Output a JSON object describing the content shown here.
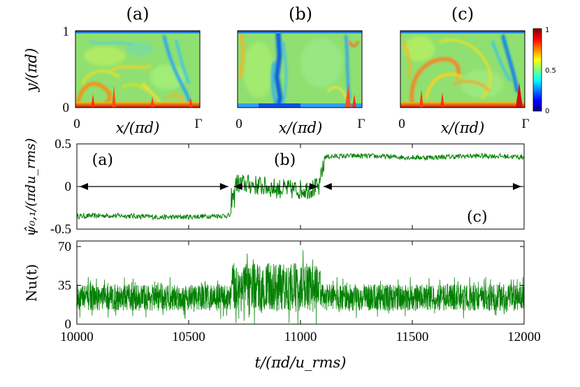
{
  "figure": {
    "snapshots": [
      {
        "label": "(a)",
        "x_start": "0",
        "x_end": "Γ",
        "xlabel": "x/(πd)"
      },
      {
        "label": "(b)",
        "x_start": "0",
        "x_end": "Γ",
        "xlabel": "x/(πd)"
      },
      {
        "label": "(c)",
        "x_start": "0",
        "x_end": "Γ",
        "xlabel": "x/(πd)"
      }
    ],
    "snapshot_ylabel": "y/(πd)",
    "snapshot_yticks": [
      "1",
      "0"
    ],
    "colorbar": {
      "ticks": [
        "1",
        "0.5",
        "0"
      ],
      "range": [
        0,
        1
      ],
      "colormap": "jet"
    },
    "interval_labels": [
      "(a)",
      "(b)",
      "(c)"
    ]
  },
  "chart_data": [
    {
      "type": "line",
      "title": "",
      "xlabel": "",
      "ylabel": "ψ̂₀,₁/(πdu_rms)",
      "xlim": [
        10000,
        12000
      ],
      "ylim": [
        -0.5,
        0.5
      ],
      "yticks": [
        "0.5",
        "0",
        "-0.5"
      ],
      "color": "#008000",
      "series": [
        {
          "name": "psi_01",
          "segments": [
            {
              "t_start": 10000,
              "t_end": 10690,
              "mean": -0.35,
              "amplitude": 0.03
            },
            {
              "t_start": 10690,
              "t_end": 10705,
              "mean": -0.17,
              "amplitude": 0.12
            },
            {
              "t_start": 10705,
              "t_end": 11090,
              "mean": 0.0,
              "amplitude": 0.12
            },
            {
              "t_start": 11090,
              "t_end": 11105,
              "mean": 0.2,
              "amplitude": 0.12
            },
            {
              "t_start": 11105,
              "t_end": 12000,
              "mean": 0.35,
              "amplitude": 0.03
            }
          ]
        }
      ],
      "annotations": [
        {
          "text": "(a)",
          "t_start": 10000,
          "t_end": 10690
        },
        {
          "text": "(b)",
          "t_start": 10690,
          "t_end": 11090
        },
        {
          "text": "(c)",
          "t_start": 11090,
          "t_end": 12000
        }
      ]
    },
    {
      "type": "line",
      "title": "",
      "xlabel": "t/(πd/u_rms)",
      "ylabel": "Nu(t)",
      "xlim": [
        10000,
        12000
      ],
      "ylim": [
        0,
        75
      ],
      "yticks": [
        "70",
        "35",
        "0"
      ],
      "xticks": [
        "10000",
        "10500",
        "11000",
        "11500",
        "12000"
      ],
      "color": "#008000",
      "series": [
        {
          "name": "Nu",
          "segments": [
            {
              "t_start": 10000,
              "t_end": 10690,
              "mean": 24,
              "amplitude": 12
            },
            {
              "t_start": 10690,
              "t_end": 11090,
              "mean": 33,
              "amplitude": 22
            },
            {
              "t_start": 11090,
              "t_end": 12000,
              "mean": 24,
              "amplitude": 12
            }
          ]
        }
      ]
    }
  ]
}
